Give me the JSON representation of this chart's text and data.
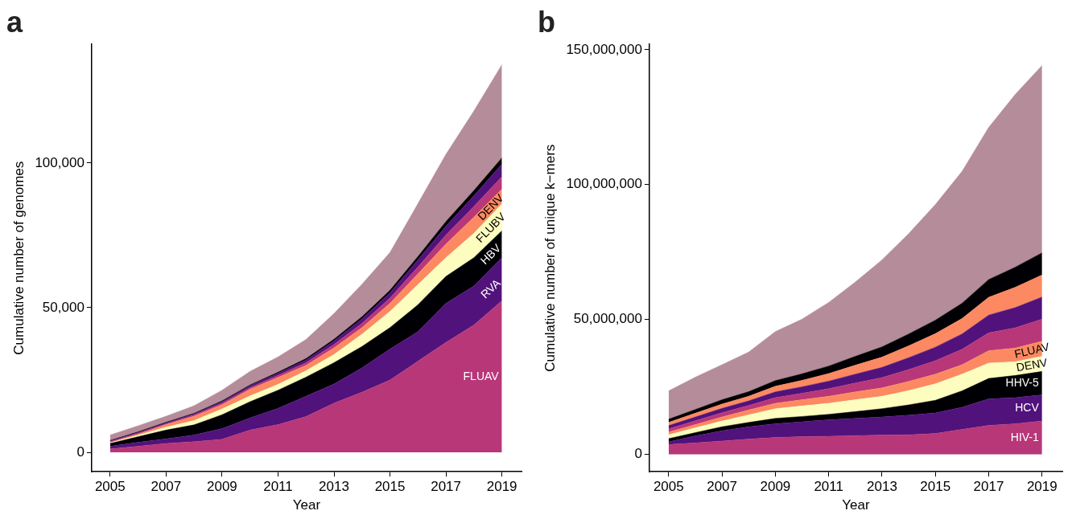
{
  "chart_data": [
    {
      "type": "area",
      "title": "a",
      "xlabel": "Year",
      "ylabel": "Cumulative number of genomes",
      "stacked": true,
      "legend": false,
      "grid": false,
      "x": [
        2005,
        2006,
        2007,
        2008,
        2009,
        2010,
        2011,
        2012,
        2013,
        2014,
        2015,
        2016,
        2017,
        2018,
        2019
      ],
      "xlim": [
        2004.34,
        2019.7
      ],
      "xticks": [
        2005,
        2007,
        2009,
        2011,
        2013,
        2015,
        2017,
        2019
      ],
      "ylim": [
        -6700,
        141000
      ],
      "yticks": [
        0,
        {
          "value": 50000,
          "label": "50,000"
        },
        {
          "value": 100000,
          "label": "100,000"
        }
      ],
      "series": [
        {
          "name": "FLUAV",
          "color": "#b73779",
          "values": [
            1200,
            2100,
            3100,
            3700,
            4500,
            7700,
            9600,
            12400,
            17000,
            20800,
            25000,
            31500,
            38000,
            44000,
            52400
          ]
        },
        {
          "name": "RVA",
          "color": "#51127c",
          "values": [
            900,
            1400,
            1600,
            2300,
            3700,
            4200,
            5600,
            7000,
            6600,
            8400,
            10700,
            10200,
            13500,
            13500,
            14900
          ]
        },
        {
          "name": "HBV",
          "color": "#000004",
          "values": [
            1000,
            1900,
            3000,
            3500,
            4800,
            5600,
            6300,
            6600,
            7400,
            7400,
            7400,
            9300,
            9300,
            9800,
            9300
          ]
        },
        {
          "name": "FLUBV",
          "color": "#fcfdbf",
          "values": [
            200,
            500,
            1000,
            1500,
            2000,
            2000,
            2000,
            2200,
            2800,
            4200,
            5600,
            7000,
            6500,
            8400,
            9300
          ]
        },
        {
          "name": "DENV",
          "color": "#fc8961",
          "values": [
            100,
            400,
            900,
            1500,
            1500,
            2300,
            2400,
            1900,
            2300,
            2300,
            2800,
            3700,
            4700,
            5600,
            5100
          ]
        },
        {
          "color": "#b73779",
          "values": [
            300,
            300,
            300,
            400,
            500,
            600,
            700,
            900,
            1200,
            1500,
            1800,
            2400,
            3100,
            3700,
            4300
          ]
        },
        {
          "color": "#51127c",
          "values": [
            300,
            300,
            300,
            400,
            500,
            600,
            700,
            900,
            1200,
            1500,
            1800,
            2400,
            3100,
            3700,
            4300
          ]
        },
        {
          "color": "#000004",
          "values": [
            100,
            200,
            200,
            200,
            300,
            300,
            400,
            500,
            600,
            800,
            900,
            1200,
            1600,
            1800,
            2200
          ]
        },
        {
          "color": "#b58c99",
          "values": [
            1900,
            2100,
            2100,
            2600,
            3700,
            4700,
            5300,
            6600,
            8900,
            11200,
            13100,
            18300,
            23200,
            27500,
            32200
          ]
        }
      ]
    },
    {
      "type": "area",
      "title": "b",
      "xlabel": "Year",
      "ylabel": "Cumulative number of unique k−mers",
      "stacked": true,
      "legend": false,
      "grid": false,
      "x": [
        2005,
        2006,
        2007,
        2008,
        2009,
        2010,
        2011,
        2012,
        2013,
        2014,
        2015,
        2016,
        2017,
        2018,
        2019
      ],
      "xlim": [
        2004.28,
        2019.76
      ],
      "xticks": [
        2005,
        2007,
        2009,
        2011,
        2013,
        2015,
        2017,
        2019
      ],
      "ylim": [
        -6500000,
        152000000
      ],
      "yticks": [
        0,
        {
          "value": 50000000,
          "label": "50,000,000"
        },
        {
          "value": 100000000,
          "label": "100,000,000"
        },
        {
          "value": 150000000,
          "label": "150,000,000"
        }
      ],
      "series": [
        {
          "name": "HIV-1",
          "color": "#b73779",
          "values": [
            3600000,
            4200000,
            4900000,
            5600000,
            6200000,
            6500000,
            6700000,
            6900000,
            7100000,
            7200000,
            7700000,
            9200000,
            10700000,
            11300000,
            12300000
          ]
        },
        {
          "name": "HCV",
          "color": "#51127c",
          "values": [
            1000000,
            2600000,
            3800000,
            4600000,
            5100000,
            5500000,
            6100000,
            6400000,
            6700000,
            7300000,
            7600000,
            8200000,
            9800000,
            9700000,
            9700000
          ]
        },
        {
          "name": "HHV-5",
          "color": "#000004",
          "values": [
            1200000,
            1200000,
            1500000,
            1600000,
            2000000,
            2000000,
            2000000,
            2500000,
            3100000,
            3800000,
            4700000,
            6100000,
            7600000,
            8200000,
            8700000
          ]
        },
        {
          "name": "DENV",
          "color": "#fcfdbf",
          "values": [
            1400000,
            1800000,
            2100000,
            2800000,
            3600000,
            3900000,
            4100000,
            4400000,
            4600000,
            5300000,
            6100000,
            6200000,
            5700000,
            5100000,
            5600000
          ]
        },
        {
          "name": "FLUAV",
          "color": "#fc8961",
          "values": [
            1000000,
            1200000,
            1500000,
            1800000,
            2000000,
            2300000,
            2600000,
            2900000,
            3100000,
            3400000,
            3600000,
            3500000,
            4600000,
            5100000,
            5600000
          ]
        },
        {
          "color": "#b73779",
          "values": [
            1200000,
            1400000,
            1600000,
            1700000,
            2100000,
            2400000,
            2800000,
            3300000,
            3800000,
            4400000,
            5000000,
            5700000,
            6600000,
            7500000,
            8200000
          ]
        },
        {
          "color": "#51127c",
          "values": [
            1200000,
            1400000,
            1600000,
            1700000,
            2100000,
            2400000,
            2800000,
            3300000,
            3800000,
            4400000,
            5000000,
            5700000,
            6600000,
            7500000,
            8200000
          ]
        },
        {
          "color": "#fc8961",
          "values": [
            1200000,
            1400000,
            1600000,
            1700000,
            2100000,
            2400000,
            2800000,
            3300000,
            3800000,
            4400000,
            5000000,
            5700000,
            6600000,
            7500000,
            8200000
          ]
        },
        {
          "color": "#000004",
          "values": [
            1200000,
            1400000,
            1600000,
            1700000,
            2100000,
            2400000,
            2800000,
            3300000,
            3800000,
            4400000,
            5000000,
            5700000,
            6600000,
            7500000,
            8200000
          ]
        },
        {
          "color": "#b58c99",
          "values": [
            10500000,
            12000000,
            13000000,
            14700000,
            18200000,
            20300000,
            23600000,
            27600000,
            32300000,
            37200000,
            42900000,
            48900000,
            56400000,
            64100000,
            69500000
          ]
        }
      ]
    }
  ]
}
